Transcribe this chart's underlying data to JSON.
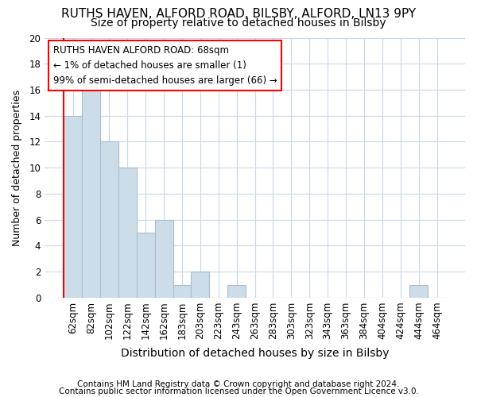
{
  "title1": "RUTHS HAVEN, ALFORD ROAD, BILSBY, ALFORD, LN13 9PY",
  "title2": "Size of property relative to detached houses in Bilsby",
  "xlabel": "Distribution of detached houses by size in Bilsby",
  "ylabel": "Number of detached properties",
  "categories": [
    "62sqm",
    "82sqm",
    "102sqm",
    "122sqm",
    "142sqm",
    "162sqm",
    "183sqm",
    "203sqm",
    "223sqm",
    "243sqm",
    "263sqm",
    "283sqm",
    "303sqm",
    "323sqm",
    "343sqm",
    "363sqm",
    "384sqm",
    "404sqm",
    "424sqm",
    "444sqm",
    "464sqm"
  ],
  "values": [
    14,
    16,
    12,
    10,
    5,
    6,
    1,
    2,
    0,
    1,
    0,
    0,
    0,
    0,
    0,
    0,
    0,
    0,
    0,
    1,
    0
  ],
  "bar_color": "#ccdce8",
  "bar_edge_color": "#aabccc",
  "annotation_box_text": "RUTHS HAVEN ALFORD ROAD: 68sqm\n← 1% of detached houses are smaller (1)\n99% of semi-detached houses are larger (66) →",
  "ylim": [
    0,
    20
  ],
  "yticks": [
    0,
    2,
    4,
    6,
    8,
    10,
    12,
    14,
    16,
    18,
    20
  ],
  "footer1": "Contains HM Land Registry data © Crown copyright and database right 2024.",
  "footer2": "Contains public sector information licensed under the Open Government Licence v3.0.",
  "bg_color": "#ffffff",
  "plot_bg_color": "#ffffff",
  "grid_color": "#c8d8e8",
  "title1_fontsize": 11,
  "title2_fontsize": 10,
  "xlabel_fontsize": 10,
  "ylabel_fontsize": 9,
  "tick_fontsize": 8.5,
  "annotation_fontsize": 8.5,
  "footer_fontsize": 7.5
}
